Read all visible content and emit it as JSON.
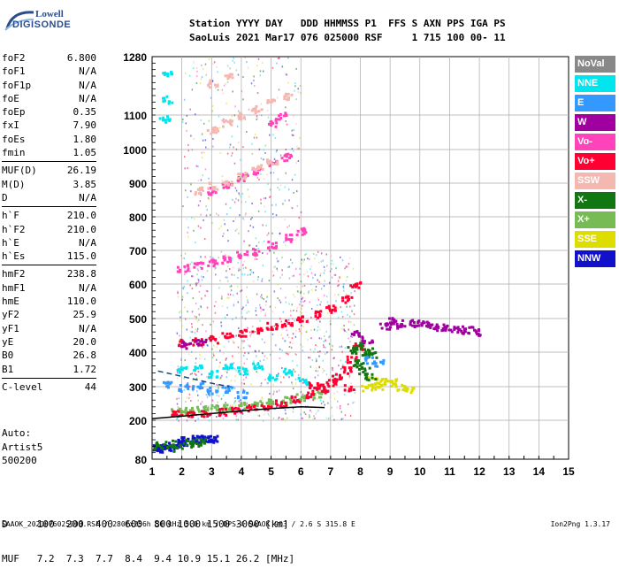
{
  "logo": {
    "line1": "Lowell",
    "line2": "DIGISONDE"
  },
  "header": {
    "line1": "Station YYYY DAY   DDD HHMMSS P1  FFS S AXN PPS IGA PS",
    "line2": "SaoLuis 2021 Mar17 076 025000 RSF     1 715 100 00- 11"
  },
  "params": [
    {
      "label": "foF2",
      "value": "6.800"
    },
    {
      "label": "foF1",
      "value": "N/A"
    },
    {
      "label": "foF1p",
      "value": "N/A"
    },
    {
      "label": "foE",
      "value": "N/A"
    },
    {
      "label": "foEp",
      "value": "0.35"
    },
    {
      "label": "fxI",
      "value": "7.90"
    },
    {
      "label": "foEs",
      "value": "1.80"
    },
    {
      "label": "fmin",
      "value": "1.05"
    },
    {
      "sep": true
    },
    {
      "label": "MUF(D)",
      "value": "26.19"
    },
    {
      "label": "M(D)",
      "value": "3.85"
    },
    {
      "label": "D",
      "value": "N/A"
    },
    {
      "sep": true
    },
    {
      "label": "h`F",
      "value": "210.0"
    },
    {
      "label": "h`F2",
      "value": "210.0"
    },
    {
      "label": "h`E",
      "value": "N/A"
    },
    {
      "label": "h`Es",
      "value": "115.0"
    },
    {
      "sep": true
    },
    {
      "label": "hmF2",
      "value": "238.8"
    },
    {
      "label": "hmF1",
      "value": "N/A"
    },
    {
      "label": "hmE",
      "value": "110.0"
    },
    {
      "label": "yF2",
      "value": "25.9"
    },
    {
      "label": "yF1",
      "value": "N/A"
    },
    {
      "label": "yE",
      "value": "20.0"
    },
    {
      "label": "B0",
      "value": "26.8"
    },
    {
      "label": "B1",
      "value": "1.72"
    },
    {
      "sep": true
    },
    {
      "label": "C-level",
      "value": "44"
    }
  ],
  "auto": {
    "line1": "Auto:",
    "line2": "Artist5",
    "line3": "500200"
  },
  "legend": [
    {
      "label": "NoVal",
      "color": "#888888"
    },
    {
      "label": "NNE",
      "color": "#00e5ee"
    },
    {
      "label": "E",
      "color": "#3399ff"
    },
    {
      "label": "W",
      "color": "#a000a0"
    },
    {
      "label": "Vo-",
      "color": "#ff44bb"
    },
    {
      "label": "Vo+",
      "color": "#ff0033"
    },
    {
      "label": "SSW",
      "color": "#f5b8b0"
    },
    {
      "label": "X-",
      "color": "#117711"
    },
    {
      "label": "X+",
      "color": "#77bb55"
    },
    {
      "label": "SSE",
      "color": "#dddd00"
    },
    {
      "label": "NNW",
      "color": "#1111cc"
    }
  ],
  "muf_table": {
    "d_row": "D     100  200  400  600  800 1000 1500 3000 [km]",
    "muf_row": "MUF   7.2  7.3  7.7  8.4  9.4 10.9 15.1 26.2 [MHz]"
  },
  "footer": {
    "left": "SAAOK_2021076025000.RSF / 280fx256h 50 kHz 5.0 km / DPS-4 SAAOK 903 / 2.6 S 315.8 E",
    "right": "Ion2Png 1.3.17"
  },
  "chart_data": {
    "type": "scatter",
    "title": "",
    "xlabel": "",
    "ylabel": "",
    "xlim": [
      1,
      15
    ],
    "ylim": [
      80,
      1280
    ],
    "x_ticks": [
      1,
      2,
      3,
      4,
      5,
      6,
      7,
      8,
      9,
      10,
      11,
      12,
      13,
      14,
      15
    ],
    "y_ticks": [
      80,
      200,
      300,
      400,
      500,
      600,
      700,
      800,
      900,
      1000,
      1100,
      1280
    ],
    "grid": true,
    "legend_position": "right",
    "trace_lines": [
      {
        "name": "profile",
        "color": "#000000",
        "points": [
          [
            1,
            205
          ],
          [
            2,
            212
          ],
          [
            3,
            220
          ],
          [
            4,
            228
          ],
          [
            5,
            235
          ],
          [
            6,
            240
          ],
          [
            6.8,
            238
          ]
        ]
      },
      {
        "name": "es-line",
        "color": "#1a4a7a",
        "dashed": true,
        "points": [
          [
            1.2,
            345
          ],
          [
            2,
            330
          ],
          [
            3,
            310
          ],
          [
            3.6,
            300
          ]
        ]
      }
    ],
    "series": [
      {
        "name": "Es-trace",
        "color": "#1111cc",
        "points": [
          [
            1.1,
            118
          ],
          [
            1.3,
            120
          ],
          [
            1.5,
            125
          ],
          [
            1.7,
            120
          ],
          [
            1.9,
            128
          ],
          [
            2.0,
            135
          ],
          [
            2.1,
            140
          ],
          [
            2.3,
            142
          ],
          [
            2.5,
            145
          ],
          [
            2.7,
            145
          ],
          [
            2.9,
            145
          ],
          [
            3.0,
            145
          ],
          [
            1.2,
            115
          ],
          [
            1.4,
            117
          ]
        ]
      },
      {
        "name": "Es-X",
        "color": "#117711",
        "points": [
          [
            1.2,
            125
          ],
          [
            1.6,
            130
          ],
          [
            1.8,
            118
          ],
          [
            2.2,
            132
          ],
          [
            2.4,
            128
          ],
          [
            2.6,
            138
          ]
        ]
      },
      {
        "name": "F-X+",
        "color": "#77bb55",
        "points": [
          [
            1.8,
            230
          ],
          [
            2.2,
            232
          ],
          [
            2.6,
            235
          ],
          [
            3.0,
            238
          ],
          [
            3.5,
            240
          ],
          [
            4.0,
            245
          ],
          [
            4.5,
            250
          ],
          [
            5.0,
            255
          ],
          [
            5.5,
            262
          ],
          [
            6.0,
            270
          ],
          [
            6.5,
            278
          ]
        ]
      },
      {
        "name": "F-Vo+",
        "color": "#ff0033",
        "points": [
          [
            1.8,
            220
          ],
          [
            2.3,
            222
          ],
          [
            2.8,
            225
          ],
          [
            3.3,
            228
          ],
          [
            3.8,
            232
          ],
          [
            4.3,
            238
          ],
          [
            4.8,
            245
          ],
          [
            5.3,
            252
          ],
          [
            5.8,
            265
          ],
          [
            6.2,
            280
          ],
          [
            6.6,
            300
          ],
          [
            7.0,
            315
          ],
          [
            7.2,
            330
          ],
          [
            7.5,
            350
          ],
          [
            7.7,
            380
          ],
          [
            7.9,
            420
          ],
          [
            7.6,
            300
          ],
          [
            6.8,
            295
          ],
          [
            6.4,
            310
          ],
          [
            2,
            430
          ],
          [
            2.5,
            435
          ],
          [
            3,
            440
          ],
          [
            3.5,
            450
          ],
          [
            4,
            460
          ],
          [
            4.5,
            470
          ],
          [
            5,
            480
          ],
          [
            5.5,
            490
          ],
          [
            6,
            500
          ],
          [
            6.5,
            515
          ],
          [
            7.0,
            530
          ],
          [
            7.5,
            560
          ],
          [
            7.8,
            600
          ]
        ]
      },
      {
        "name": "F-W",
        "color": "#a000a0",
        "points": [
          [
            9.2,
            485
          ],
          [
            9.5,
            490
          ],
          [
            9.8,
            488
          ],
          [
            10.1,
            485
          ],
          [
            10.4,
            480
          ],
          [
            10.7,
            478
          ],
          [
            11.0,
            475
          ],
          [
            11.3,
            470
          ],
          [
            11.6,
            468
          ],
          [
            11.9,
            462
          ],
          [
            8.8,
            480
          ],
          [
            9.0,
            495
          ],
          [
            7.8,
            460
          ],
          [
            8.2,
            440
          ],
          [
            2.1,
            425
          ],
          [
            2.6,
            432
          ]
        ]
      },
      {
        "name": "F-SSE",
        "color": "#dddd00",
        "points": [
          [
            8.4,
            320
          ],
          [
            8.7,
            318
          ],
          [
            9.0,
            315
          ],
          [
            9.3,
            300
          ],
          [
            9.6,
            295
          ],
          [
            8.2,
            300
          ],
          [
            8.6,
            305
          ]
        ]
      },
      {
        "name": "F-X-",
        "color": "#117711",
        "points": [
          [
            8.0,
            420
          ],
          [
            8.2,
            405
          ],
          [
            8.4,
            395
          ],
          [
            8.1,
            350
          ],
          [
            8.3,
            330
          ],
          [
            7.9,
            370
          ],
          [
            7.7,
            410
          ]
        ]
      },
      {
        "name": "F-NNE",
        "color": "#00e5ee",
        "points": [
          [
            1.45,
            1230
          ],
          [
            1.5,
            1150
          ],
          [
            1.4,
            1090
          ],
          [
            2,
            350
          ],
          [
            2.5,
            360
          ],
          [
            3,
            340
          ],
          [
            3.5,
            365
          ],
          [
            4,
            350
          ],
          [
            4.5,
            360
          ],
          [
            5,
            330
          ],
          [
            5.5,
            345
          ],
          [
            6,
            320
          ]
        ]
      },
      {
        "name": "F-E",
        "color": "#3399ff",
        "points": [
          [
            1.5,
            310
          ],
          [
            2,
            300
          ],
          [
            2.5,
            305
          ],
          [
            3,
            290
          ],
          [
            3.5,
            295
          ],
          [
            4,
            280
          ],
          [
            8.3,
            380
          ],
          [
            8.6,
            370
          ]
        ]
      },
      {
        "name": "multi-2",
        "color": "#ff44bb",
        "points": [
          [
            2,
            650
          ],
          [
            2.5,
            660
          ],
          [
            3,
            665
          ],
          [
            3.5,
            675
          ],
          [
            4,
            690
          ],
          [
            4.5,
            700
          ],
          [
            5,
            720
          ],
          [
            5.5,
            740
          ],
          [
            6,
            760
          ],
          [
            3,
            880
          ],
          [
            3.5,
            900
          ],
          [
            4,
            920
          ],
          [
            4.5,
            940
          ],
          [
            5,
            960
          ],
          [
            5.5,
            980
          ],
          [
            5,
            1080
          ],
          [
            5.3,
            1100
          ]
        ]
      },
      {
        "name": "multi-3",
        "color": "#f5b8b0",
        "points": [
          [
            2.5,
            880
          ],
          [
            3,
            895
          ],
          [
            3.5,
            905
          ],
          [
            4,
            925
          ],
          [
            4.5,
            950
          ],
          [
            5,
            965
          ],
          [
            3,
            1060
          ],
          [
            3.5,
            1080
          ],
          [
            4,
            1100
          ],
          [
            4.5,
            1120
          ],
          [
            5,
            1140
          ],
          [
            5.5,
            1160
          ],
          [
            3,
            1200
          ],
          [
            3.6,
            1220
          ]
        ]
      }
    ],
    "noise_regions": [
      {
        "x": [
          1.8,
          7.8
        ],
        "y": [
          200,
          700
        ],
        "density": "high"
      },
      {
        "x": [
          2,
          6
        ],
        "y": [
          700,
          1280
        ],
        "density": "low"
      }
    ]
  }
}
